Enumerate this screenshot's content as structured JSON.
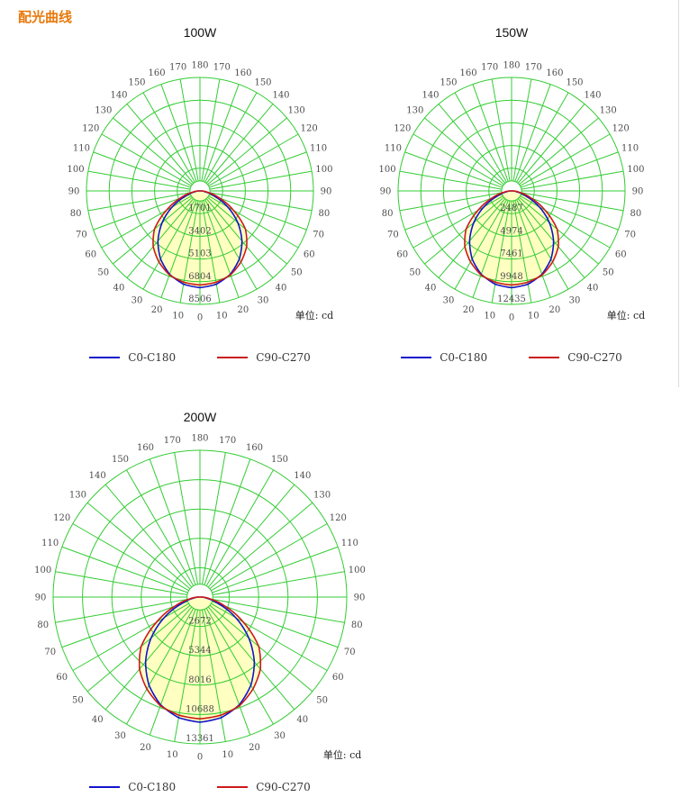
{
  "page": {
    "title": "配光曲线",
    "title_color": "#e8780a"
  },
  "chart_data": [
    {
      "type": "polar",
      "title": "100W",
      "unit_label": "单位: cd",
      "grid_color": "#33cc33",
      "fill_color": "#ffffc2",
      "angle_labels": [
        0,
        10,
        20,
        30,
        40,
        50,
        60,
        70,
        80,
        90,
        100,
        110,
        120,
        130,
        140,
        150,
        160,
        170,
        180
      ],
      "ring_values": [
        1701,
        3402,
        5103,
        6804,
        8506
      ],
      "max_cd": 8506,
      "beam_angles_deg": [
        0,
        10,
        20,
        30,
        40,
        50,
        60,
        70,
        80,
        90
      ],
      "series": [
        {
          "name": "C0-C180",
          "color": "#1414cc",
          "values_cd": [
            7250,
            7100,
            6650,
            5900,
            4900,
            3700,
            2400,
            1150,
            420,
            90
          ]
        },
        {
          "name": "C90-C270",
          "color": "#cc1a1a",
          "values_cd": [
            7050,
            6950,
            6700,
            6150,
            5450,
            4450,
            2900,
            1550,
            580,
            130
          ]
        }
      ]
    },
    {
      "type": "polar",
      "title": "150W",
      "unit_label": "单位: cd",
      "grid_color": "#33cc33",
      "fill_color": "#ffffc2",
      "angle_labels": [
        0,
        10,
        20,
        30,
        40,
        50,
        60,
        70,
        80,
        90,
        100,
        110,
        120,
        130,
        140,
        150,
        160,
        170,
        180
      ],
      "ring_values": [
        2487,
        4974,
        7461,
        9948,
        12435
      ],
      "max_cd": 12435,
      "beam_angles_deg": [
        0,
        10,
        20,
        30,
        40,
        50,
        60,
        70,
        80,
        90
      ],
      "series": [
        {
          "name": "C0-C180",
          "color": "#1414cc",
          "values_cd": [
            10600,
            10380,
            9720,
            8630,
            7160,
            5410,
            3510,
            1680,
            610,
            130
          ]
        },
        {
          "name": "C90-C270",
          "color": "#cc1a1a",
          "values_cd": [
            10310,
            10160,
            9800,
            8990,
            7970,
            6510,
            4240,
            2270,
            850,
            190
          ]
        }
      ]
    },
    {
      "type": "polar",
      "title": "200W",
      "unit_label": "单位: cd",
      "grid_color": "#33cc33",
      "fill_color": "#ffffc2",
      "angle_labels": [
        0,
        10,
        20,
        30,
        40,
        50,
        60,
        70,
        80,
        90,
        100,
        110,
        120,
        130,
        140,
        150,
        160,
        170,
        180
      ],
      "ring_values": [
        2672,
        5344,
        8016,
        10688,
        13361
      ],
      "max_cd": 13361,
      "beam_angles_deg": [
        0,
        10,
        20,
        30,
        40,
        50,
        60,
        70,
        80,
        90
      ],
      "series": [
        {
          "name": "C0-C180",
          "color": "#1414cc",
          "values_cd": [
            11390,
            11150,
            10450,
            9270,
            7700,
            5810,
            3770,
            1810,
            660,
            140
          ]
        },
        {
          "name": "C90-C270",
          "color": "#cc1a1a",
          "values_cd": [
            11080,
            10920,
            10530,
            9660,
            8560,
            6990,
            4560,
            2430,
            910,
            200
          ]
        }
      ]
    }
  ]
}
